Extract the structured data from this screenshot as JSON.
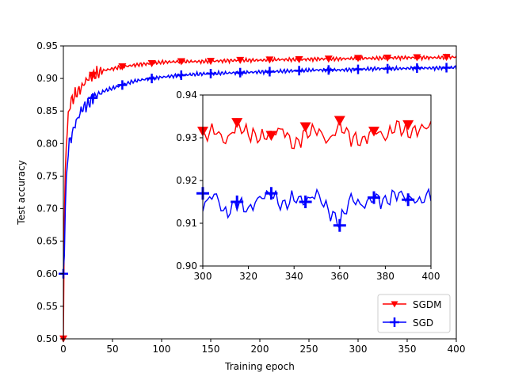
{
  "chart_data": [
    {
      "id": "main",
      "type": "line",
      "xlabel": "Training epoch",
      "ylabel": "Test accuracy",
      "xlim": [
        0,
        400
      ],
      "ylim": [
        0.5,
        0.95
      ],
      "xticks": [
        0,
        50,
        100,
        150,
        200,
        250,
        300,
        350,
        400
      ],
      "yticks": [
        0.5,
        0.55,
        0.6,
        0.65,
        0.7,
        0.75,
        0.8,
        0.85,
        0.9,
        0.95
      ],
      "xtick_labels": [
        "0",
        "50",
        "100",
        "150",
        "200",
        "250",
        "300",
        "350",
        "400"
      ],
      "ytick_labels": [
        "0.50",
        "0.55",
        "0.60",
        "0.65",
        "0.70",
        "0.75",
        "0.80",
        "0.85",
        "0.90",
        "0.95"
      ],
      "legend_position": "bottom-right",
      "series": [
        {
          "name": "SGDM",
          "color": "#ff0000",
          "marker": "triangle-down",
          "x": [
            0,
            1,
            2,
            3,
            4,
            5,
            6,
            8,
            10,
            12,
            15,
            18,
            20,
            25,
            30,
            35,
            40,
            50,
            60,
            70,
            80,
            90,
            100,
            120,
            140,
            160,
            180,
            200,
            220,
            240,
            260,
            280,
            300,
            320,
            340,
            360,
            380,
            400
          ],
          "y": [
            0.5,
            0.68,
            0.76,
            0.8,
            0.82,
            0.84,
            0.855,
            0.865,
            0.87,
            0.875,
            0.88,
            0.885,
            0.89,
            0.9,
            0.905,
            0.908,
            0.912,
            0.915,
            0.918,
            0.92,
            0.922,
            0.923,
            0.925,
            0.926,
            0.926,
            0.927,
            0.928,
            0.928,
            0.929,
            0.929,
            0.93,
            0.93,
            0.931,
            0.931,
            0.932,
            0.932,
            0.932,
            0.933
          ],
          "marker_x": [
            0,
            30,
            60,
            90,
            120,
            150,
            180,
            210,
            240,
            270,
            300,
            330,
            360,
            390
          ]
        },
        {
          "name": "SGD",
          "color": "#0000ff",
          "marker": "plus",
          "x": [
            0,
            1,
            2,
            3,
            4,
            5,
            6,
            8,
            10,
            12,
            15,
            18,
            20,
            25,
            30,
            35,
            40,
            50,
            60,
            70,
            80,
            90,
            100,
            120,
            140,
            160,
            180,
            200,
            220,
            240,
            260,
            280,
            300,
            320,
            340,
            360,
            380,
            400
          ],
          "y": [
            0.6,
            0.64,
            0.7,
            0.74,
            0.77,
            0.79,
            0.8,
            0.81,
            0.82,
            0.83,
            0.84,
            0.85,
            0.855,
            0.86,
            0.87,
            0.875,
            0.88,
            0.885,
            0.89,
            0.895,
            0.898,
            0.9,
            0.902,
            0.905,
            0.907,
            0.908,
            0.909,
            0.91,
            0.911,
            0.912,
            0.913,
            0.913,
            0.914,
            0.915,
            0.915,
            0.916,
            0.916,
            0.917
          ],
          "marker_x": [
            0,
            30,
            60,
            90,
            120,
            150,
            180,
            210,
            240,
            270,
            300,
            330,
            360,
            390
          ]
        }
      ]
    },
    {
      "id": "inset",
      "type": "line",
      "xlim": [
        300,
        400
      ],
      "ylim": [
        0.9,
        0.94
      ],
      "xticks": [
        300,
        320,
        340,
        360,
        380,
        400
      ],
      "yticks": [
        0.9,
        0.91,
        0.92,
        0.93,
        0.94
      ],
      "xtick_labels": [
        "300",
        "320",
        "340",
        "360",
        "380",
        "400"
      ],
      "ytick_labels": [
        "0.90",
        "0.91",
        "0.92",
        "0.93",
        "0.94"
      ],
      "series": [
        {
          "name": "SGDM",
          "color": "#ff0000",
          "marker": "triangle-down",
          "x": [
            300,
            305,
            310,
            315,
            320,
            325,
            330,
            335,
            340,
            345,
            350,
            355,
            360,
            365,
            370,
            375,
            380,
            385,
            390,
            395,
            400
          ],
          "y": [
            0.93,
            0.932,
            0.929,
            0.933,
            0.931,
            0.93,
            0.931,
            0.932,
            0.928,
            0.931,
            0.932,
            0.929,
            0.933,
            0.93,
            0.929,
            0.932,
            0.93,
            0.933,
            0.931,
            0.932,
            0.933
          ],
          "marker_x": [
            300,
            315,
            330,
            345,
            360,
            375,
            390
          ],
          "marker_y": [
            0.9315,
            0.9335,
            0.9305,
            0.9325,
            0.934,
            0.9315,
            0.933
          ]
        },
        {
          "name": "SGD",
          "color": "#0000ff",
          "marker": "plus",
          "x": [
            300,
            305,
            310,
            315,
            320,
            325,
            330,
            335,
            340,
            345,
            350,
            355,
            360,
            365,
            370,
            375,
            380,
            385,
            390,
            395,
            400
          ],
          "y": [
            0.914,
            0.917,
            0.912,
            0.915,
            0.913,
            0.916,
            0.917,
            0.914,
            0.916,
            0.915,
            0.917,
            0.913,
            0.91,
            0.916,
            0.914,
            0.916,
            0.915,
            0.917,
            0.916,
            0.915,
            0.917
          ],
          "marker_x": [
            300,
            315,
            330,
            345,
            360,
            375,
            390
          ],
          "marker_y": [
            0.917,
            0.915,
            0.917,
            0.915,
            0.9095,
            0.916,
            0.9155
          ]
        }
      ]
    }
  ]
}
